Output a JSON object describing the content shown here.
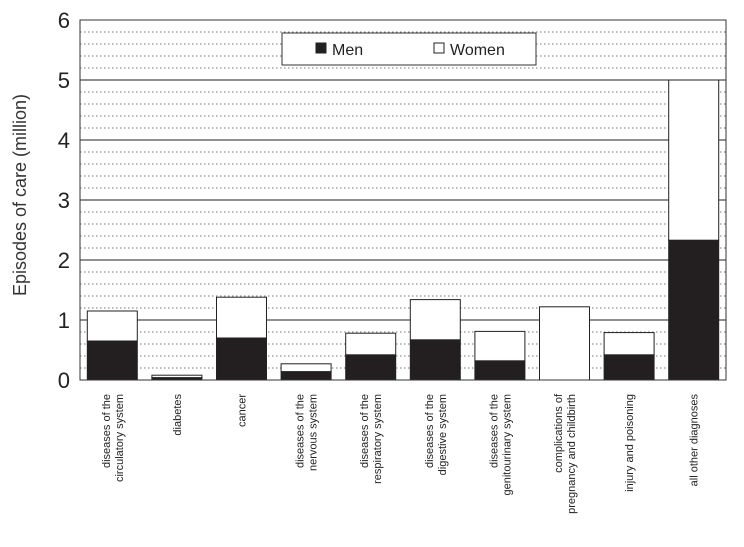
{
  "chart_data": {
    "type": "bar",
    "stacked": true,
    "title": "",
    "xlabel": "",
    "ylabel": "Episodes of care (million)",
    "ylim": [
      0,
      6
    ],
    "yticks": [
      0,
      1,
      2,
      3,
      4,
      5,
      6
    ],
    "grid": {
      "major": true,
      "minor_dotted": true
    },
    "legend": {
      "placement": "top-center",
      "entries": [
        "Men",
        "Women"
      ]
    },
    "categories": [
      [
        "diseases of the",
        "circulatory system"
      ],
      [
        "diabetes"
      ],
      [
        "cancer"
      ],
      [
        "diseases of the",
        "nervous system"
      ],
      [
        "diseases of the",
        "respiratory system"
      ],
      [
        "diseases of the",
        "digestive system"
      ],
      [
        "diseases of the",
        "genitourinary system"
      ],
      [
        "complications of",
        "pregnancy and childbirth"
      ],
      [
        "injury and poisoning"
      ],
      [
        "all other diagnoses"
      ]
    ],
    "series": [
      {
        "name": "Men",
        "color": "#231f20",
        "values": [
          0.65,
          0.04,
          0.7,
          0.14,
          0.42,
          0.67,
          0.32,
          0.0,
          0.42,
          2.33
        ]
      },
      {
        "name": "Women",
        "color": "#ffffff",
        "values": [
          0.5,
          0.04,
          0.68,
          0.13,
          0.36,
          0.67,
          0.49,
          1.22,
          0.37,
          2.67
        ]
      }
    ]
  }
}
